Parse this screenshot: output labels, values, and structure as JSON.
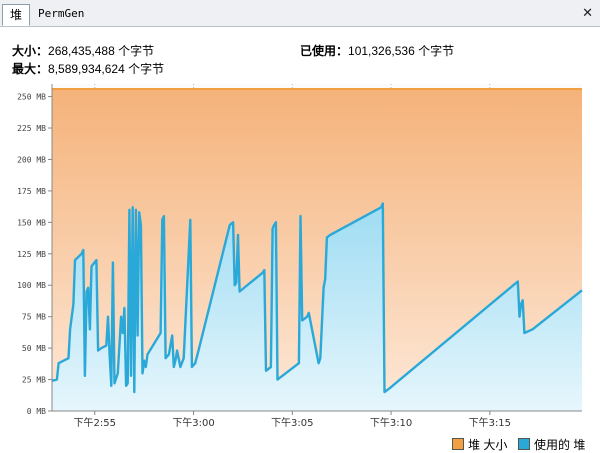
{
  "tabs": [
    {
      "label": "堆"
    },
    {
      "label": "PermGen"
    }
  ],
  "close_glyph": "✕",
  "stats": {
    "size_label": "大小：",
    "size_value": "268,435,488 个字节",
    "used_label": "已使用：",
    "used_value": "101,326,536 个字节",
    "max_label": "最大：",
    "max_value": "8,589,934,624 个字节"
  },
  "legend": {
    "heap_size": "堆 大小",
    "used_heap": "使用的 堆"
  },
  "colors": {
    "heap_size": "#f0a040",
    "used_heap": "#2aa8d8"
  },
  "chart_data": {
    "type": "area",
    "y_unit": "MB",
    "ylim": [
      0,
      260
    ],
    "y_ticks": [
      0,
      25,
      50,
      75,
      100,
      125,
      150,
      175,
      200,
      225,
      250
    ],
    "y_tick_labels": [
      "0 MB",
      "25 MB",
      "50 MB",
      "75 MB",
      "100 MB",
      "125 MB",
      "150 MB",
      "175 MB",
      "200 MB",
      "225 MB",
      "250 MB"
    ],
    "x_time_range": [
      "14:52:50",
      "15:19:40"
    ],
    "x_ticks": [
      "14:55",
      "15:00",
      "15:05",
      "15:10",
      "15:15"
    ],
    "x_tick_labels": [
      "下午2:55",
      "下午3:00",
      "下午3:05",
      "下午3:10",
      "下午3:15"
    ],
    "grid": true,
    "legend_position": "bottom-right",
    "series": [
      {
        "name": "堆 大小",
        "points": [
          [
            "14:52:50",
            256
          ],
          [
            "15:19:40",
            256
          ]
        ]
      },
      {
        "name": "使用的 堆",
        "points": [
          [
            "14:52:50",
            24
          ],
          [
            "14:53:05",
            25
          ],
          [
            "14:53:10",
            38
          ],
          [
            "14:53:40",
            42
          ],
          [
            "14:53:45",
            65
          ],
          [
            "14:53:55",
            85
          ],
          [
            "14:54:00",
            120
          ],
          [
            "14:54:20",
            125
          ],
          [
            "14:54:25",
            128
          ],
          [
            "14:54:30",
            28
          ],
          [
            "14:54:35",
            95
          ],
          [
            "14:54:40",
            98
          ],
          [
            "14:54:45",
            65
          ],
          [
            "14:54:50",
            115
          ],
          [
            "14:55:05",
            120
          ],
          [
            "14:55:10",
            48
          ],
          [
            "14:55:20",
            50
          ],
          [
            "14:55:35",
            52
          ],
          [
            "14:55:40",
            75
          ],
          [
            "14:55:45",
            45
          ],
          [
            "14:55:50",
            20
          ],
          [
            "14:55:55",
            118
          ],
          [
            "14:56:00",
            22
          ],
          [
            "14:56:10",
            30
          ],
          [
            "14:56:20",
            75
          ],
          [
            "14:56:25",
            62
          ],
          [
            "14:56:30",
            82
          ],
          [
            "14:56:35",
            20
          ],
          [
            "14:56:40",
            22
          ],
          [
            "14:56:45",
            160
          ],
          [
            "14:56:50",
            28
          ],
          [
            "14:56:55",
            162
          ],
          [
            "14:57:00",
            15
          ],
          [
            "14:57:05",
            160
          ],
          [
            "14:57:10",
            60
          ],
          [
            "14:57:15",
            158
          ],
          [
            "14:57:20",
            148
          ],
          [
            "14:57:25",
            30
          ],
          [
            "14:57:30",
            40
          ],
          [
            "14:57:35",
            35
          ],
          [
            "14:57:40",
            45
          ],
          [
            "14:58:20",
            62
          ],
          [
            "14:58:25",
            152
          ],
          [
            "14:58:30",
            155
          ],
          [
            "14:58:35",
            42
          ],
          [
            "14:58:45",
            45
          ],
          [
            "14:58:55",
            60
          ],
          [
            "14:59:00",
            35
          ],
          [
            "14:59:05",
            40
          ],
          [
            "14:59:10",
            48
          ],
          [
            "14:59:20",
            35
          ],
          [
            "14:59:30",
            42
          ],
          [
            "14:59:50",
            152
          ],
          [
            "14:59:55",
            35
          ],
          [
            "15:00:05",
            38
          ],
          [
            "15:00:15",
            48
          ],
          [
            "15:01:50",
            148
          ],
          [
            "15:02:00",
            150
          ],
          [
            "15:02:05",
            100
          ],
          [
            "15:02:10",
            102
          ],
          [
            "15:02:15",
            140
          ],
          [
            "15:02:20",
            95
          ],
          [
            "15:03:30",
            110
          ],
          [
            "15:03:35",
            112
          ],
          [
            "15:03:40",
            32
          ],
          [
            "15:03:55",
            35
          ],
          [
            "15:04:00",
            145
          ],
          [
            "15:04:05",
            148
          ],
          [
            "15:04:10",
            150
          ],
          [
            "15:04:15",
            25
          ],
          [
            "15:05:20",
            38
          ],
          [
            "15:05:25",
            155
          ],
          [
            "15:05:30",
            72
          ],
          [
            "15:05:45",
            75
          ],
          [
            "15:05:50",
            78
          ],
          [
            "15:06:20",
            38
          ],
          [
            "15:06:25",
            42
          ],
          [
            "15:06:35",
            98
          ],
          [
            "15:06:40",
            105
          ],
          [
            "15:06:45",
            138
          ],
          [
            "15:06:55",
            140
          ],
          [
            "15:09:30",
            162
          ],
          [
            "15:09:35",
            165
          ],
          [
            "15:09:40",
            15
          ],
          [
            "15:09:55",
            18
          ],
          [
            "15:16:25",
            103
          ],
          [
            "15:16:30",
            75
          ],
          [
            "15:16:35",
            85
          ],
          [
            "15:16:40",
            88
          ],
          [
            "15:16:45",
            62
          ],
          [
            "15:17:10",
            65
          ],
          [
            "15:19:40",
            96
          ]
        ]
      }
    ]
  }
}
